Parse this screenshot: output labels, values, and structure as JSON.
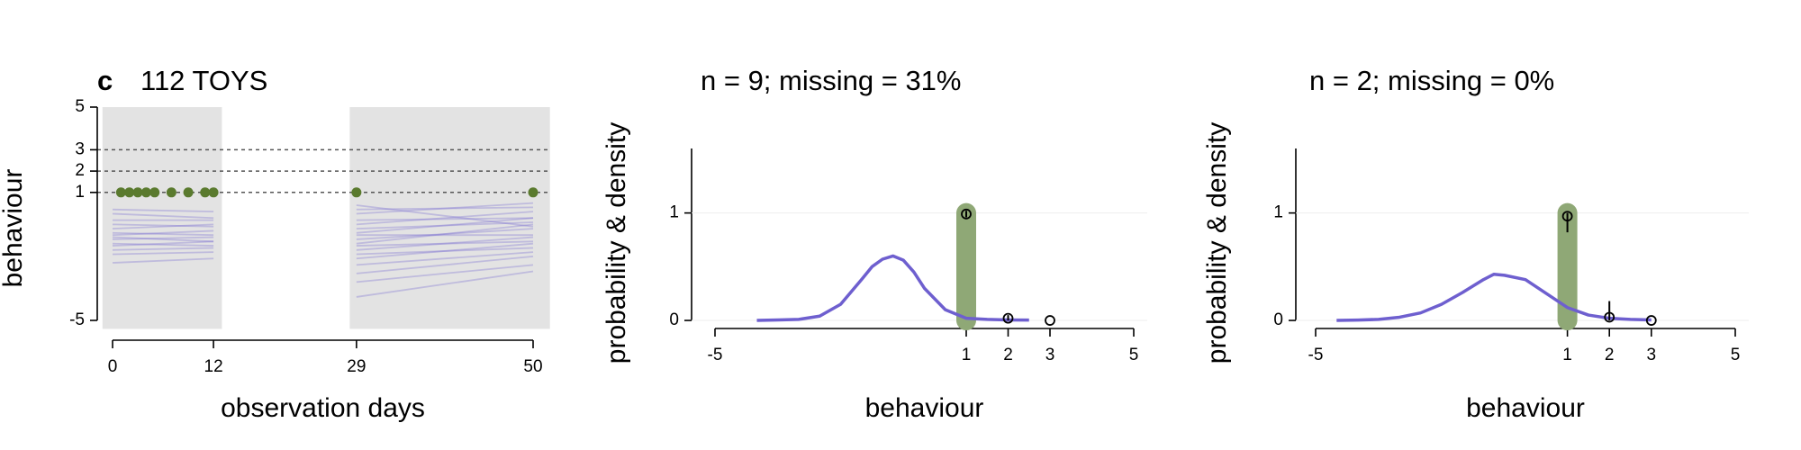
{
  "chart_data": [
    {
      "type": "line",
      "panel_label": "c",
      "title": "112 TOYS",
      "y_label": "behaviour",
      "x_label": "observation days",
      "xlim": [
        0,
        50
      ],
      "ylim": [
        -5,
        5
      ],
      "xticks": [
        0,
        12,
        29,
        50
      ],
      "yticks": [
        -5,
        1,
        2,
        3,
        5
      ],
      "shaded": [
        {
          "x": [
            -1.2,
            13
          ],
          "y": [
            -5.4,
            5
          ]
        },
        {
          "x": [
            28.2,
            52
          ],
          "y": [
            -5.4,
            5
          ]
        }
      ],
      "shade_color": "#e3e3e3",
      "reference_lines": [
        1,
        2,
        3
      ],
      "line_color": "#7b6fd0",
      "series": [
        {
          "x": [
            0,
            12
          ],
          "values": [
            0.2,
            0.1
          ]
        },
        {
          "x": [
            0,
            12
          ],
          "values": [
            0.0,
            -0.2
          ]
        },
        {
          "x": [
            0,
            12
          ],
          "values": [
            -0.3,
            -0.3
          ]
        },
        {
          "x": [
            0,
            12
          ],
          "values": [
            -0.5,
            -0.6
          ]
        },
        {
          "x": [
            0,
            12
          ],
          "values": [
            -0.7,
            -0.5
          ]
        },
        {
          "x": [
            0,
            12
          ],
          "values": [
            -0.9,
            -1.0
          ]
        },
        {
          "x": [
            0,
            12
          ],
          "values": [
            -1.0,
            -0.8
          ]
        },
        {
          "x": [
            0,
            12
          ],
          "values": [
            -1.1,
            -1.3
          ]
        },
        {
          "x": [
            0,
            12
          ],
          "values": [
            -1.2,
            -1.1
          ]
        },
        {
          "x": [
            0,
            12
          ],
          "values": [
            -1.4,
            -1.5
          ]
        },
        {
          "x": [
            0,
            12
          ],
          "values": [
            -1.5,
            -1.3
          ]
        },
        {
          "x": [
            0,
            12
          ],
          "values": [
            -1.7,
            -1.6
          ]
        },
        {
          "x": [
            0,
            12
          ],
          "values": [
            -1.9,
            -1.8
          ]
        },
        {
          "x": [
            0,
            12
          ],
          "values": [
            -2.3,
            -2.1
          ]
        },
        {
          "x": [
            29,
            50
          ],
          "values": [
            0.4,
            -0.6
          ]
        },
        {
          "x": [
            29,
            50
          ],
          "values": [
            0.2,
            0.3
          ]
        },
        {
          "x": [
            29,
            50
          ],
          "values": [
            0.0,
            0.5
          ]
        },
        {
          "x": [
            29,
            50
          ],
          "values": [
            -0.3,
            -0.2
          ]
        },
        {
          "x": [
            29,
            50
          ],
          "values": [
            -0.5,
            0.1
          ]
        },
        {
          "x": [
            29,
            50
          ],
          "values": [
            -0.7,
            -0.4
          ]
        },
        {
          "x": [
            29,
            50
          ],
          "values": [
            -0.9,
            -0.2
          ]
        },
        {
          "x": [
            29,
            50
          ],
          "values": [
            -1.0,
            -1.0
          ]
        },
        {
          "x": [
            29,
            50
          ],
          "values": [
            -1.2,
            -0.7
          ]
        },
        {
          "x": [
            29,
            50
          ],
          "values": [
            -1.4,
            -0.5
          ]
        },
        {
          "x": [
            29,
            50
          ],
          "values": [
            -1.5,
            -1.3
          ]
        },
        {
          "x": [
            29,
            50
          ],
          "values": [
            -1.7,
            -1.1
          ]
        },
        {
          "x": [
            29,
            50
          ],
          "values": [
            -1.9,
            -1.6
          ]
        },
        {
          "x": [
            29,
            50
          ],
          "values": [
            -2.1,
            -1.4
          ]
        },
        {
          "x": [
            29,
            50
          ],
          "values": [
            -2.4,
            -1.8
          ]
        },
        {
          "x": [
            29,
            50
          ],
          "values": [
            -2.8,
            -2.0
          ]
        },
        {
          "x": [
            29,
            50
          ],
          "values": [
            -3.2,
            -2.4
          ]
        },
        {
          "x": [
            29,
            50
          ],
          "values": [
            -3.9,
            -2.7
          ]
        }
      ],
      "points": {
        "color": "#5a7a2e",
        "x": [
          1,
          2,
          3,
          4,
          5,
          7,
          9,
          11,
          12,
          29,
          50
        ],
        "values": [
          1,
          1,
          1,
          1,
          1,
          1,
          1,
          1,
          1,
          1,
          1
        ]
      }
    },
    {
      "type": "density",
      "title": "n = 9; missing = 31%",
      "y_label": "probability & density",
      "x_label": "behaviour",
      "xlim": [
        -5,
        5
      ],
      "ylim": [
        -0.075,
        1.6
      ],
      "xticks": [
        -5,
        1,
        2,
        3,
        5
      ],
      "yticks": [
        0,
        1
      ],
      "density": {
        "color": "#6e5fcf",
        "x": [
          -4,
          -3.5,
          -3,
          -2.5,
          -2,
          -1.5,
          -1.25,
          -1,
          -0.75,
          -0.5,
          -0.25,
          0,
          0.5,
          1,
          1.5,
          2,
          2.5
        ],
        "values": [
          0,
          0.005,
          0.01,
          0.04,
          0.15,
          0.38,
          0.5,
          0.57,
          0.6,
          0.56,
          0.45,
          0.3,
          0.1,
          0.02,
          0.01,
          0.005,
          0.003
        ]
      },
      "highlight": {
        "x": 1,
        "value": 1,
        "color": "#8fa876"
      },
      "points": {
        "x": [
          1,
          2,
          3
        ],
        "values": [
          0.99,
          0.02,
          0
        ],
        "lower": [
          0.96,
          0.0,
          0
        ],
        "upper": [
          1.02,
          0.05,
          0
        ]
      }
    },
    {
      "type": "density",
      "title": "n = 2; missing = 0%",
      "y_label": "probability & density",
      "x_label": "behaviour",
      "xlim": [
        -5,
        5
      ],
      "ylim": [
        -0.075,
        1.6
      ],
      "xticks": [
        -5,
        1,
        2,
        3,
        5
      ],
      "yticks": [
        0,
        1
      ],
      "density": {
        "color": "#6e5fcf",
        "x": [
          -4.5,
          -4,
          -3.5,
          -3,
          -2.5,
          -2,
          -1.5,
          -1,
          -0.75,
          -0.5,
          0,
          0.5,
          1,
          1.5,
          2,
          2.5,
          3
        ],
        "values": [
          0,
          0.003,
          0.01,
          0.03,
          0.07,
          0.15,
          0.26,
          0.38,
          0.43,
          0.42,
          0.38,
          0.25,
          0.12,
          0.05,
          0.02,
          0.01,
          0.005
        ]
      },
      "highlight": {
        "x": 1,
        "value": 1,
        "color": "#8fa876"
      },
      "points": {
        "x": [
          1,
          2,
          3
        ],
        "values": [
          0.97,
          0.03,
          0
        ],
        "lower": [
          0.82,
          0.0,
          0
        ],
        "upper": [
          1.0,
          0.18,
          0
        ]
      }
    }
  ]
}
